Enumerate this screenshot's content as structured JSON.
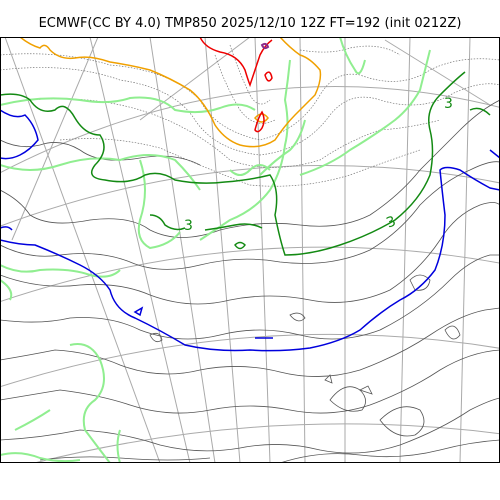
{
  "title": "ECMWF(CC BY 4.0) TMP850 2025/12/10 12Z FT=192 (init 0212Z)",
  "contour_labels": [
    {
      "text": "3",
      "color": "#138a13"
    },
    {
      "text": "3",
      "color": "#138a13"
    },
    {
      "text": "3",
      "color": "#138a13"
    }
  ],
  "colors": {
    "gray_contour": "#555555",
    "dotted_contour": "#777777",
    "grid": "#aaaaaa",
    "green_light": "#90ee90",
    "green_dark": "#138a13",
    "blue": "#0000dd",
    "orange": "#f0a000",
    "red": "#ee0000",
    "purple": "#8b2c8b",
    "frame": "#000000"
  }
}
